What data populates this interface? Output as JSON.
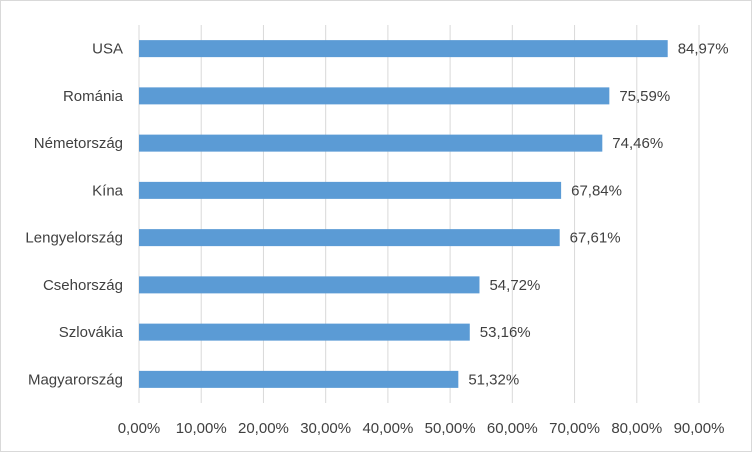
{
  "chart_data": {
    "type": "bar",
    "orientation": "horizontal",
    "categories": [
      "USA",
      "Románia",
      "Németország",
      "Kína",
      "Lengyelország",
      "Csehország",
      "Szlovákia",
      "Magyarország"
    ],
    "values": [
      84.97,
      75.59,
      74.46,
      67.84,
      67.61,
      54.72,
      53.16,
      51.32
    ],
    "value_labels": [
      "84,97%",
      "75,59%",
      "74,46%",
      "67,84%",
      "67,61%",
      "54,72%",
      "53,16%",
      "51,32%"
    ],
    "xlim": [
      0,
      90
    ],
    "x_ticks": [
      0,
      10,
      20,
      30,
      40,
      50,
      60,
      70,
      80,
      90
    ],
    "x_tick_labels": [
      "0,00%",
      "10,00%",
      "20,00%",
      "30,00%",
      "40,00%",
      "50,00%",
      "60,00%",
      "70,00%",
      "80,00%",
      "90,00%"
    ],
    "grid": true,
    "bar_color": "#5b9bd5",
    "grid_color": "#d9d9d9"
  }
}
